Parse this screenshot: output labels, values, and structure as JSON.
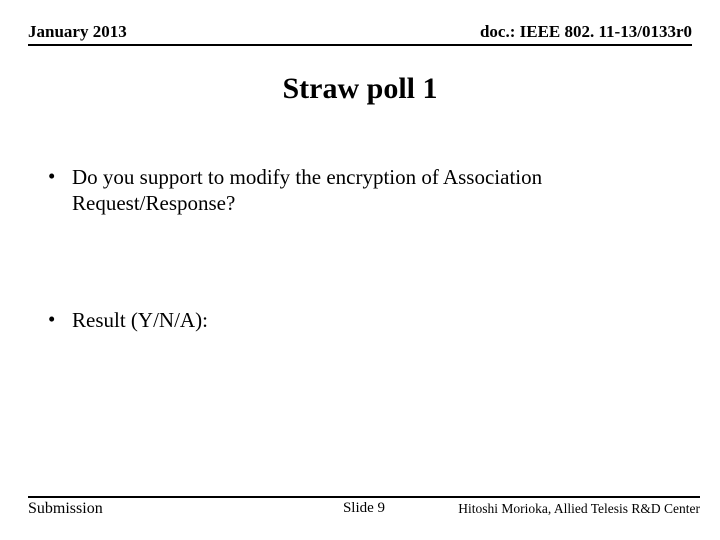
{
  "header": {
    "date": "January 2013",
    "doc": "doc.: IEEE 802. 11-13/0133r0"
  },
  "title": "Straw poll 1",
  "bullets": [
    {
      "text": "Do you support to modify the encryption of Association Request/Response?"
    },
    {
      "text": "Result (Y/N/A):"
    }
  ],
  "footer": {
    "left": "Submission",
    "center": "Slide 9",
    "right": "Hitoshi Morioka, Allied Telesis R&D Center"
  },
  "colors": {
    "background": "#ffffff",
    "text": "#000000",
    "rule": "#000000"
  }
}
